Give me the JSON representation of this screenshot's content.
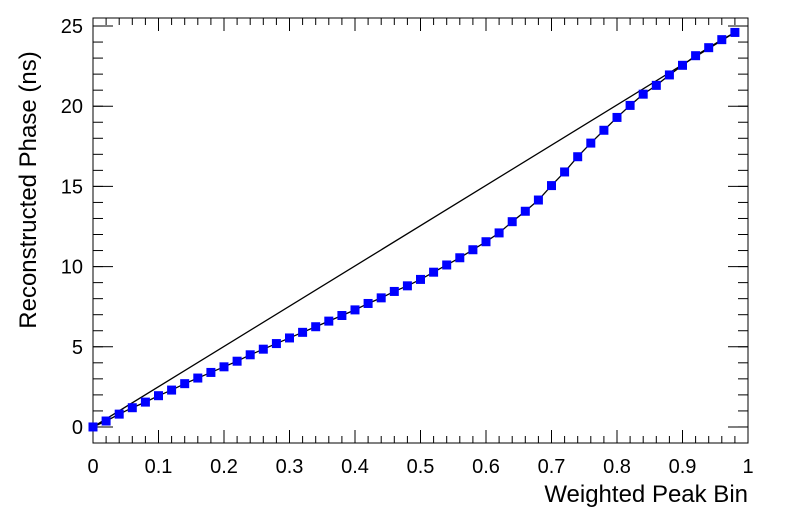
{
  "chart_data": {
    "type": "line",
    "xlabel": "Weighted Peak Bin",
    "ylabel": "Reconstructed Phase (ns)",
    "xlim": [
      0,
      1
    ],
    "ylim": [
      -1,
      25.5
    ],
    "xticks": [
      0,
      0.1,
      0.2,
      0.3,
      0.4,
      0.5,
      0.6,
      0.7,
      0.8,
      0.9,
      1
    ],
    "yticks": [
      0,
      5,
      10,
      15,
      20,
      25
    ],
    "series": [
      {
        "color": "#0000ff",
        "line_color": "#000000",
        "marker": "square",
        "x": [
          0,
          0.02,
          0.04,
          0.06,
          0.08,
          0.1,
          0.12,
          0.14,
          0.16,
          0.18,
          0.2,
          0.22,
          0.24,
          0.26,
          0.28,
          0.3,
          0.32,
          0.34,
          0.36,
          0.38,
          0.4,
          0.42,
          0.44,
          0.46,
          0.48,
          0.5,
          0.52,
          0.54,
          0.56,
          0.58,
          0.6,
          0.62,
          0.64,
          0.66,
          0.68,
          0.7,
          0.72,
          0.74,
          0.76,
          0.78,
          0.8,
          0.82,
          0.84,
          0.86,
          0.88,
          0.9,
          0.92,
          0.94,
          0.96,
          0.98
        ],
        "values": [
          0,
          0.37,
          0.8,
          1.2,
          1.55,
          1.95,
          2.3,
          2.7,
          3.05,
          3.4,
          3.75,
          4.1,
          4.5,
          4.85,
          5.2,
          5.55,
          5.9,
          6.25,
          6.6,
          6.95,
          7.3,
          7.7,
          8.05,
          8.45,
          8.8,
          9.2,
          9.65,
          10.1,
          10.55,
          11.05,
          11.55,
          12.1,
          12.8,
          13.45,
          14.15,
          15.05,
          15.9,
          16.85,
          17.7,
          18.5,
          19.3,
          20.05,
          20.75,
          21.3,
          21.95,
          22.55,
          23.15,
          23.65,
          24.15,
          24.6
        ]
      },
      {
        "color": "#000000",
        "marker": "none",
        "x": [
          0,
          0.98
        ],
        "values": [
          0,
          24.6
        ]
      }
    ]
  }
}
